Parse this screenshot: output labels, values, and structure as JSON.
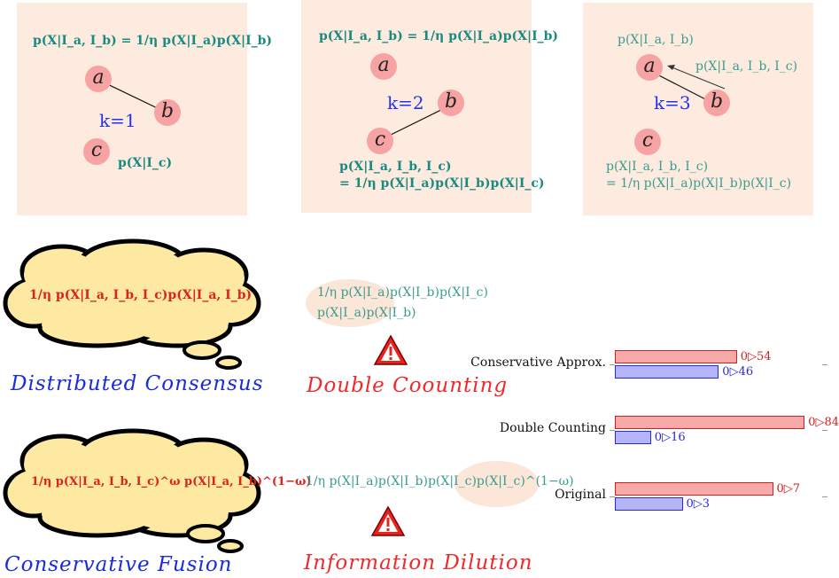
{
  "panels": {
    "k1": {
      "formula_top": "p(X|I_a, I_b) = 1/η p(X|I_a)p(X|I_b)",
      "nodes": [
        "a",
        "b",
        "c"
      ],
      "k_label": "k=1",
      "formula_c": "p(X|I_c)"
    },
    "k2": {
      "formula_top": "p(X|I_a, I_b) = 1/η p(X|I_a)p(X|I_b)",
      "nodes": [
        "a",
        "b",
        "c"
      ],
      "k_label": "k=2",
      "formula_bottom_1": "p(X|I_a, I_b, I_c)",
      "formula_bottom_2": "= 1/η p(X|I_a)p(X|I_b)p(X|I_c)"
    },
    "k3": {
      "formula_top": "p(X|I_a, I_b)",
      "arrow_label": "p(X|I_a, I_b, I_c)",
      "nodes": [
        "a",
        "b",
        "c"
      ],
      "k_label": "k=3",
      "formula_bottom_1": "p(X|I_a, I_b, I_c)",
      "formula_bottom_2": "= 1/η p(X|I_a)p(X|I_b)p(X|I_c)"
    }
  },
  "middle": {
    "cloud1_text": "1/η p(X|I_a, I_b, I_c)p(X|I_a, I_b)",
    "caption1": "Distributed Consensus",
    "formula_double_1": "1/η p(X|I_a)p(X|I_b)p(X|I_c)",
    "formula_double_2": "p(X|I_a)p(X|I_b)",
    "caption_double": "Double Coounting",
    "cloud2_text": "1/η p(X|I_a, I_b, I_c)^ω p(X|I_a, I_b)^(1−ω)",
    "caption2": "Conservative Fusion",
    "formula_dilution": "1/η p(X|I_a)p(X|I_b)p(X|I_c)p(X|I_c)^(1−ω)",
    "caption_dilution": "Information Dilution",
    "warning_icon": "warning-triangle-icon"
  },
  "chart_data": {
    "type": "bar",
    "categories": [
      "Conservative Approx.",
      "Double Counting",
      "Original"
    ],
    "series": [
      {
        "values": [
          0.54,
          0.84,
          0.7
        ],
        "labels": [
          "0▷54",
          "0▷84",
          "0▷7"
        ],
        "color": "#f7a8a8"
      },
      {
        "values": [
          0.46,
          0.16,
          0.3
        ],
        "labels": [
          "0▷46",
          "0▷16",
          "0▷3"
        ],
        "color": "#b4b4f8"
      }
    ]
  }
}
